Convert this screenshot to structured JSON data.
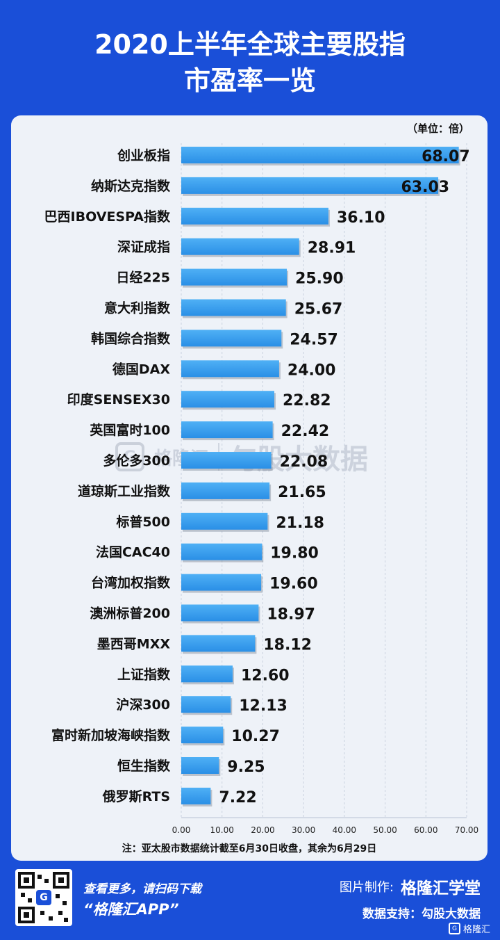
{
  "header": {
    "title_line1": "2020上半年全球主要股指",
    "title_line2": "市盈率一览"
  },
  "chart_data": {
    "type": "bar",
    "orientation": "horizontal",
    "unit_label": "（单位：倍）",
    "categories": [
      "创业板指",
      "纳斯达克指数",
      "巴西IBOVESPA指数",
      "深证成指",
      "日经225",
      "意大利指数",
      "韩国综合指数",
      "德国DAX",
      "印度SENSEX30",
      "英国富时100",
      "多伦多300",
      "道琼斯工业指数",
      "标普500",
      "法国CAC40",
      "台湾加权指数",
      "澳洲标普200",
      "墨西哥MXX",
      "上证指数",
      "沪深300",
      "富时新加坡海峡指数",
      "恒生指数",
      "俄罗斯RTS"
    ],
    "values": [
      68.07,
      63.03,
      36.1,
      28.91,
      25.9,
      25.67,
      24.57,
      24.0,
      22.82,
      22.42,
      22.08,
      21.65,
      21.18,
      19.8,
      19.6,
      18.97,
      18.12,
      12.6,
      12.13,
      10.27,
      9.25,
      7.22
    ],
    "value_labels": [
      "68.07",
      "63.03",
      "36.10",
      "28.91",
      "25.90",
      "25.67",
      "24.57",
      "24.00",
      "22.82",
      "22.42",
      "22.08",
      "21.65",
      "21.18",
      "19.80",
      "19.60",
      "18.97",
      "18.12",
      "12.60",
      "12.13",
      "10.27",
      "9.25",
      "7.22"
    ],
    "xlim": [
      0,
      70
    ],
    "x_ticks": [
      "0.00",
      "10.00",
      "20.00",
      "30.00",
      "40.00",
      "50.00",
      "60.00",
      "70.00"
    ],
    "grid": true,
    "bar_color": "#2a8fe6",
    "note": "注：亚太股市数据统计截至6月30日收盘，其余为6月29日"
  },
  "watermark": {
    "logo": "G",
    "brand": "格隆汇",
    "text": "勾股大数据"
  },
  "footer": {
    "scan_text": "查看更多，请扫码下载",
    "app_text": "“格隆汇APP”",
    "made_by_label": "图片制作:",
    "made_by_brand": "格隆汇学堂",
    "support_text": "数据支持：勾股大数据",
    "corner_brand": "格隆汇",
    "qr_logo": "G"
  },
  "colors": {
    "background": "#1a4fd8",
    "card": "#eef2f8",
    "bar": "#2a8fe6"
  }
}
